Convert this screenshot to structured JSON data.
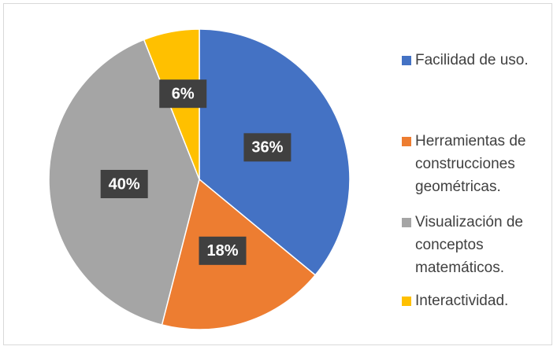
{
  "chart_data": {
    "type": "pie",
    "categories": [
      "Facilidad de uso.",
      "Herramientas de construcciones geométricas.",
      "Visualización de conceptos matemáticos.",
      "Interactividad."
    ],
    "values": [
      36,
      18,
      40,
      6
    ],
    "value_labels": [
      "36%",
      "18%",
      "40%",
      "6%"
    ],
    "colors": [
      "#4472c4",
      "#ed7d31",
      "#a5a5a5",
      "#ffc000"
    ],
    "legend": "right"
  }
}
